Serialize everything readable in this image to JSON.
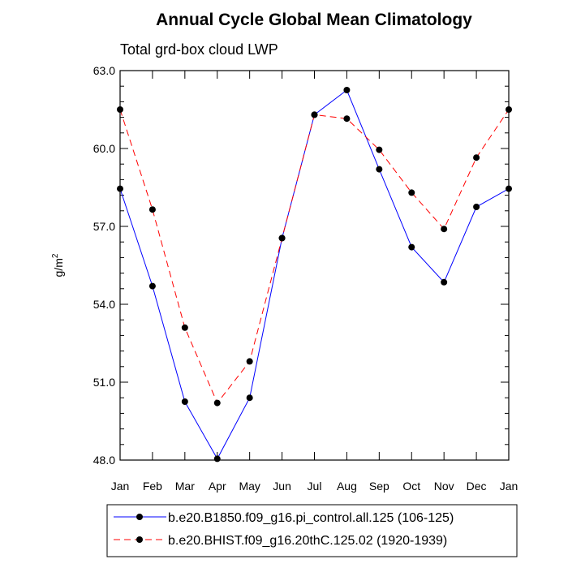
{
  "chart_data": {
    "type": "line",
    "title": "Annual Cycle Global Mean Climatology",
    "subtitle": "Total grd-box cloud LWP",
    "ylabel": "g/m",
    "ylabel_sup": "2",
    "xlabel": "",
    "categories": [
      "Jan",
      "Feb",
      "Mar",
      "Apr",
      "May",
      "Jun",
      "Jul",
      "Aug",
      "Sep",
      "Oct",
      "Nov",
      "Dec",
      "Jan"
    ],
    "ylim": [
      48.0,
      63.0
    ],
    "yticks": [
      "48.0",
      "51.0",
      "54.0",
      "57.0",
      "60.0",
      "63.0"
    ],
    "legend_position": "bottom",
    "series": [
      {
        "name": "b.e20.B1850.f09_g16.pi_control.all.125 (106-125)",
        "color": "#0000ff",
        "style": "solid",
        "values": [
          58.45,
          54.7,
          50.25,
          48.05,
          50.4,
          56.55,
          61.3,
          62.25,
          59.2,
          56.2,
          54.85,
          57.75,
          58.45
        ]
      },
      {
        "name": "b.e20.BHIST.f09_g16.20thC.125.02 (1920-1939)",
        "color": "#ff0000",
        "style": "dashed",
        "values": [
          61.5,
          57.65,
          53.1,
          50.2,
          51.8,
          56.55,
          61.3,
          61.15,
          59.95,
          58.3,
          56.9,
          59.65,
          61.5
        ]
      }
    ]
  }
}
